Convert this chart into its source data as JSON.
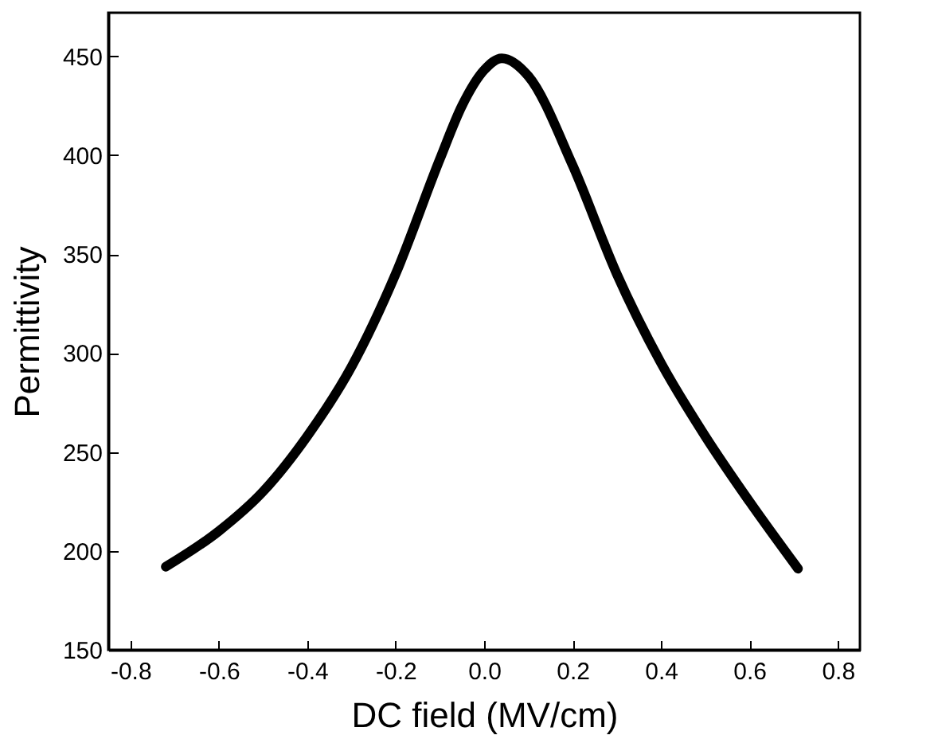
{
  "chart_data": {
    "type": "line",
    "xlabel": "DC field (MV/cm)",
    "ylabel": "Permittivity",
    "x": [
      -0.72,
      -0.6,
      -0.5,
      -0.4,
      -0.3,
      -0.2,
      -0.1,
      -0.05,
      0,
      0.04,
      0.1,
      0.2,
      0.3,
      0.4,
      0.5,
      0.6,
      0.71
    ],
    "series": [
      {
        "color": "#000000",
        "values": [
          192,
          210,
          230,
          258,
          293,
          340,
          398,
          425,
          443,
          449,
          440,
          395,
          340,
          295,
          258,
          225,
          191
        ]
      }
    ],
    "xlim": [
      -0.85,
      0.85
    ],
    "xticks": [
      {
        "value": -0.8,
        "label": "-0.8"
      },
      {
        "value": -0.6,
        "label": "-0.6"
      },
      {
        "value": -0.4,
        "label": "-0.4"
      },
      {
        "value": -0.2,
        "label": "-0.2"
      },
      {
        "value": 0,
        "label": "0.0"
      },
      {
        "value": 0.2,
        "label": "0.2"
      },
      {
        "value": 0.4,
        "label": "0.4"
      },
      {
        "value": 0.6,
        "label": "0.6"
      },
      {
        "value": 0.8,
        "label": "0.8"
      }
    ],
    "ylim": [
      150,
      472
    ],
    "yticks": [
      150,
      200,
      250,
      300,
      350,
      400,
      450
    ],
    "grid": false,
    "marker": "none",
    "line_style": "solid"
  }
}
